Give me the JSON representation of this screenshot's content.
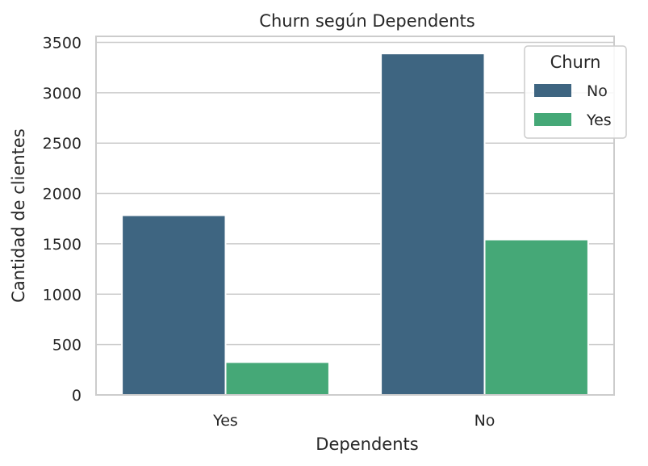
{
  "chart_data": {
    "type": "bar",
    "title": "Churn según Dependents",
    "xlabel": "Dependents",
    "ylabel": "Cantidad de clientes",
    "categories": [
      "Yes",
      "No"
    ],
    "series": [
      {
        "name": "No",
        "values": [
          1784,
          3390
        ],
        "color": "#3e6581"
      },
      {
        "name": "Yes",
        "values": [
          326,
          1543
        ],
        "color": "#45a877"
      }
    ],
    "ylim": [
      0,
      3560
    ],
    "yticks": [
      0,
      500,
      1000,
      1500,
      2000,
      2500,
      3000,
      3500
    ],
    "grid": true,
    "legend": {
      "title": "Churn",
      "position": "top-right"
    }
  }
}
